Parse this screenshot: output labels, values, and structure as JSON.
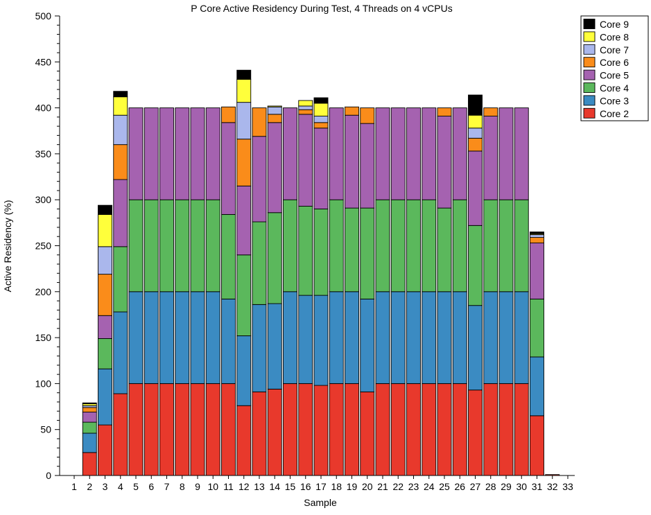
{
  "chart_data": {
    "type": "bar",
    "stacked": true,
    "title": "P Core Active Residency During Test, 4 Threads on 4 vCPUs",
    "xlabel": "Sample",
    "ylabel": "Active Residency (%)",
    "ylim": [
      0,
      500
    ],
    "yticks": [
      "0",
      "50",
      "100",
      "150",
      "200",
      "250",
      "300",
      "350",
      "400",
      "450",
      "500"
    ],
    "grid": false,
    "legend_position": "top-right",
    "categories": [
      "1",
      "2",
      "3",
      "4",
      "5",
      "6",
      "7",
      "8",
      "9",
      "10",
      "11",
      "12",
      "13",
      "14",
      "15",
      "16",
      "17",
      "18",
      "19",
      "20",
      "21",
      "22",
      "23",
      "24",
      "25",
      "26",
      "27",
      "28",
      "29",
      "30",
      "31",
      "32",
      "33"
    ],
    "series": [
      {
        "name": "Core 2",
        "color": "#e8392c",
        "values": [
          0,
          25,
          55,
          89,
          100,
          100,
          100,
          100,
          100,
          100,
          100,
          76,
          91,
          94,
          100,
          100,
          98,
          100,
          100,
          91,
          100,
          100,
          100,
          100,
          100,
          100,
          93,
          100,
          100,
          100,
          65,
          1,
          0
        ]
      },
      {
        "name": "Core 3",
        "color": "#3b8bc2",
        "values": [
          0,
          21,
          61,
          89,
          100,
          100,
          100,
          100,
          100,
          100,
          92,
          76,
          95,
          93,
          100,
          96,
          98,
          100,
          100,
          101,
          100,
          100,
          100,
          100,
          100,
          100,
          92,
          100,
          100,
          100,
          64,
          0,
          0
        ]
      },
      {
        "name": "Core 4",
        "color": "#5bb85c",
        "values": [
          0,
          12,
          33,
          71,
          100,
          100,
          100,
          100,
          100,
          100,
          92,
          88,
          90,
          99,
          100,
          97,
          94,
          100,
          91,
          99,
          100,
          100,
          100,
          100,
          91,
          100,
          87,
          100,
          100,
          100,
          63,
          0,
          0
        ]
      },
      {
        "name": "Core 5",
        "color": "#a562b0",
        "values": [
          0,
          11,
          25,
          73,
          100,
          100,
          100,
          100,
          100,
          100,
          100,
          75,
          93,
          98,
          100,
          100,
          88,
          100,
          101,
          92,
          100,
          100,
          100,
          100,
          100,
          100,
          81,
          91,
          100,
          100,
          61,
          0,
          0
        ]
      },
      {
        "name": "Core 6",
        "color": "#fa8c1a",
        "values": [
          0,
          5,
          45,
          38,
          0,
          0,
          0,
          0,
          0,
          0,
          17,
          51,
          31,
          9,
          0,
          5,
          6,
          0,
          9,
          17,
          0,
          0,
          0,
          0,
          9,
          0,
          14,
          9,
          0,
          0,
          6,
          0,
          0
        ]
      },
      {
        "name": "Core 7",
        "color": "#aab7ec",
        "values": [
          0,
          2,
          30,
          32,
          0,
          0,
          0,
          0,
          0,
          0,
          0,
          40,
          0,
          8,
          0,
          4,
          7,
          0,
          0,
          0,
          0,
          0,
          0,
          0,
          0,
          0,
          11,
          0,
          0,
          0,
          3,
          0,
          0
        ]
      },
      {
        "name": "Core 8",
        "color": "#ffff3b",
        "values": [
          0,
          2,
          35,
          20,
          0,
          0,
          0,
          0,
          0,
          0,
          0,
          25,
          0,
          1,
          0,
          6,
          14,
          0,
          0,
          0,
          0,
          0,
          0,
          0,
          0,
          0,
          14,
          0,
          0,
          0,
          1,
          0,
          0
        ]
      },
      {
        "name": "Core 9",
        "color": "#000000",
        "values": [
          0,
          1,
          10,
          6,
          0,
          0,
          0,
          0,
          0,
          0,
          0,
          10,
          0,
          0,
          0,
          0,
          6,
          0,
          0,
          0,
          0,
          0,
          0,
          0,
          0,
          0,
          22,
          0,
          0,
          0,
          2,
          0,
          0
        ]
      }
    ]
  }
}
